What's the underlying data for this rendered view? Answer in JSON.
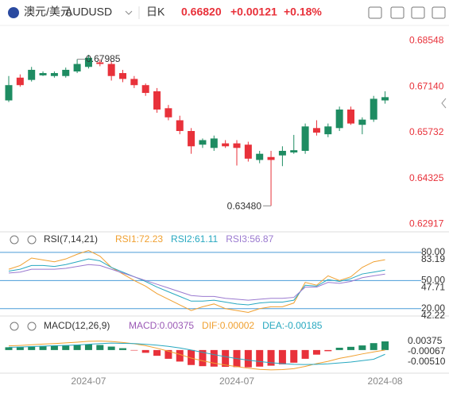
{
  "header": {
    "pair": "澳元/美元",
    "symbol": "AUDUSD",
    "period": "日K",
    "price": "0.66820",
    "change": "+0.00121",
    "change_pct": "+0.18%"
  },
  "chart_data": [
    {
      "type": "candlestick",
      "up_color": "#1e8c62",
      "down_color": "#e8313a",
      "axis_color": "#e8313a",
      "open": [
        0.6672,
        0.6742,
        0.6735,
        0.6749,
        0.6747,
        0.6747,
        0.6761,
        0.6775,
        0.6789,
        0.6784,
        0.6756,
        0.6738,
        0.6719,
        0.67,
        0.6648,
        0.6611,
        0.6578,
        0.6536,
        0.6526,
        0.654,
        0.654,
        0.6536,
        0.6489,
        0.6498,
        0.6503,
        0.6512,
        0.6517,
        0.6587,
        0.6568,
        0.6587,
        0.6644,
        0.6597,
        0.6613,
        0.6672
      ],
      "high": [
        0.6747,
        0.6752,
        0.6775,
        0.6761,
        0.6761,
        0.6773,
        0.67985,
        0.6812,
        0.6798,
        0.6794,
        0.6766,
        0.6747,
        0.6724,
        0.671,
        0.6658,
        0.6625,
        0.6587,
        0.6555,
        0.6564,
        0.655,
        0.655,
        0.6545,
        0.6517,
        0.6517,
        0.6531,
        0.6566,
        0.6601,
        0.6611,
        0.6601,
        0.6653,
        0.6653,
        0.662,
        0.6686,
        0.67
      ],
      "low": [
        0.6667,
        0.6714,
        0.673,
        0.6747,
        0.6742,
        0.6742,
        0.6756,
        0.677,
        0.6777,
        0.6733,
        0.6728,
        0.671,
        0.6686,
        0.6634,
        0.6611,
        0.6568,
        0.6508,
        0.6526,
        0.6517,
        0.6526,
        0.6472,
        0.6484,
        0.6479,
        0.6348,
        0.647,
        0.6508,
        0.6508,
        0.6564,
        0.6559,
        0.6578,
        0.6597,
        0.6568,
        0.6606,
        0.6662
      ],
      "close": [
        0.6719,
        0.6719,
        0.6766,
        0.6756,
        0.6756,
        0.6766,
        0.6784,
        0.6803,
        0.6784,
        0.6747,
        0.6738,
        0.6719,
        0.6695,
        0.6644,
        0.662,
        0.6578,
        0.6531,
        0.655,
        0.6555,
        0.6531,
        0.6526,
        0.6493,
        0.6508,
        0.6489,
        0.6517,
        0.6519,
        0.6592,
        0.6573,
        0.6592,
        0.6644,
        0.6601,
        0.6613,
        0.6677,
        0.6682
      ],
      "ylim": [
        0.6273,
        0.6883
      ],
      "yticks": [
        0.68548,
        {
          "value": 0.6714,
          "label": "0.67140"
        },
        0.65732,
        0.64325,
        0.62917
      ],
      "annotations": [
        {
          "value": 0.67985,
          "label": "0.67985"
        },
        {
          "value": 0.6348,
          "label": "0.63480"
        }
      ]
    },
    {
      "type": "line",
      "title": "RSI(7,14,21)",
      "grid_color": "#4a9bd8",
      "ylim": [
        13,
        85
      ],
      "yticks": [
        {
          "value": 80,
          "label": "80.00"
        },
        {
          "value": 50,
          "label": "50.00"
        },
        {
          "value": 20,
          "label": "20.00"
        }
      ],
      "extra_labels": [
        "83.19",
        "47.71",
        "42.22"
      ],
      "series": [
        {
          "name": "RSI1:72.23",
          "color": "#f0a030",
          "values": [
            62,
            66,
            74,
            72,
            70,
            73,
            78,
            82,
            76,
            64,
            57,
            50,
            44,
            36,
            30,
            24,
            18,
            22,
            25,
            20,
            18,
            16,
            20,
            22,
            22,
            26,
            48,
            45,
            55,
            50,
            54,
            64,
            70,
            72.23
          ]
        },
        {
          "name": "RSI2:61.11",
          "color": "#27a8c0",
          "values": [
            60,
            62,
            66,
            66,
            65,
            67,
            70,
            73,
            71,
            64,
            59,
            54,
            49,
            43,
            38,
            33,
            28,
            28,
            29,
            27,
            25,
            24,
            26,
            27,
            27,
            29,
            45,
            44,
            51,
            49,
            52,
            57,
            59,
            61.11
          ]
        },
        {
          "name": "RSI3:56.87",
          "color": "#9b7ad0",
          "values": [
            58,
            59,
            62,
            62,
            62,
            63,
            65,
            67,
            66,
            62,
            58,
            54,
            50,
            46,
            42,
            38,
            34,
            33,
            33,
            31,
            30,
            29,
            30,
            31,
            31,
            32,
            43,
            43,
            48,
            47,
            49,
            53,
            55,
            56.87
          ]
        }
      ]
    },
    {
      "type": "macd",
      "title": "MACD(12,26,9)",
      "ylim": [
        -0.009,
        0.0072
      ],
      "yticks": [
        0.00375,
        -0.00067,
        {
          "value": -0.0051,
          "label": "-0.00510"
        }
      ],
      "series": [
        {
          "name": "MACD:0.00375",
          "color": "#9b59b6",
          "up_color": "#1e8c62",
          "down_color": "#e8313a",
          "values": [
            0.0012,
            0.0014,
            0.0016,
            0.0018,
            0.0019,
            0.0021,
            0.0023,
            0.0025,
            0.0022,
            0.0015,
            0.0008,
            -0.0002,
            -0.0012,
            -0.0025,
            -0.0038,
            -0.005,
            -0.0065,
            -0.007,
            -0.0072,
            -0.0073,
            -0.0074,
            -0.0075,
            -0.0072,
            -0.0068,
            -0.0062,
            -0.0055,
            -0.0038,
            -0.002,
            -0.0005,
            0.001,
            0.0014,
            0.002,
            0.003,
            0.00375
          ]
        },
        {
          "name": "DIF:0.00002",
          "color": "#f0a030",
          "values": [
            0.0018,
            0.002,
            0.0023,
            0.0026,
            0.0028,
            0.0031,
            0.0034,
            0.0038,
            0.0039,
            0.0037,
            0.0033,
            0.0027,
            0.0019,
            0.0008,
            -0.0005,
            -0.0019,
            -0.0035,
            -0.0047,
            -0.0057,
            -0.0065,
            -0.0072,
            -0.0079,
            -0.0084,
            -0.0086,
            -0.0085,
            -0.0081,
            -0.0071,
            -0.0059,
            -0.0049,
            -0.0036,
            -0.0027,
            -0.0017,
            -0.0008,
            2e-05
          ]
        },
        {
          "name": "DEA:-0.00185",
          "color": "#27a8c0",
          "values": [
            0.0012,
            0.0013,
            0.0015,
            0.0017,
            0.0019,
            0.002,
            0.0022,
            0.0025,
            0.0028,
            0.003,
            0.0029,
            0.0028,
            0.0025,
            0.0021,
            0.0016,
            0.0009,
            0,
            -0.001,
            -0.002,
            -0.0029,
            -0.0037,
            -0.0044,
            -0.005,
            -0.0055,
            -0.0059,
            -0.0062,
            -0.0063,
            -0.0062,
            -0.006,
            -0.0056,
            -0.0052,
            -0.0046,
            -0.004,
            -0.00185
          ]
        }
      ],
      "categories": [
        null,
        null,
        null,
        null,
        null,
        null,
        null,
        "2024-07",
        null,
        null,
        null,
        null,
        null,
        null,
        null,
        null,
        null,
        null,
        null,
        null,
        "2024-07",
        null,
        null,
        null,
        null,
        null,
        null,
        null,
        null,
        null,
        null,
        null,
        null,
        "2024-08"
      ]
    }
  ]
}
